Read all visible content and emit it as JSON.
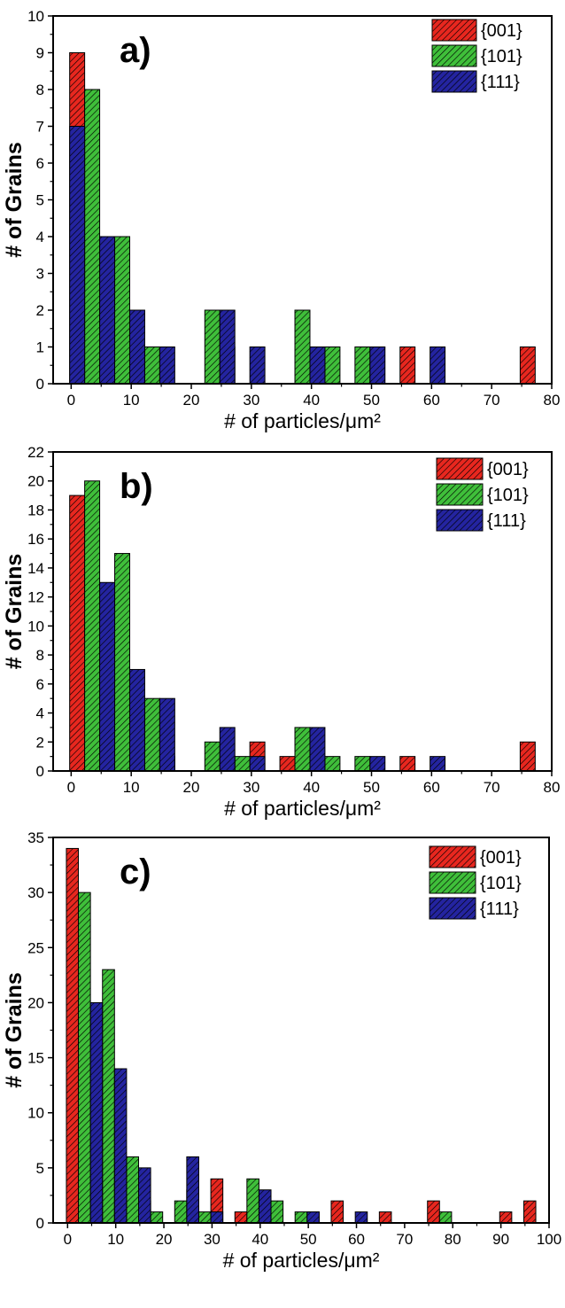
{
  "colors": {
    "001": "#e8271f",
    "101": "#3fbf3a",
    "111": "#2424a0",
    "axis": "#000000",
    "hatch": "#000000"
  },
  "chart_data": [
    {
      "type": "bar",
      "panel_label": "a)",
      "xlabel": "# of particles/μm²",
      "ylabel": "# of Grains",
      "xlim": [
        -3,
        80
      ],
      "ylim": [
        0,
        10
      ],
      "xticks": [
        0,
        10,
        20,
        30,
        40,
        50,
        60,
        70,
        80
      ],
      "yticks": [
        0,
        1,
        2,
        3,
        4,
        5,
        6,
        7,
        8,
        9,
        10
      ],
      "bar_width": 2.5,
      "legend_position": "top-right",
      "series": [
        {
          "name": "{001}",
          "color_key": "001",
          "x": [
            1,
            11,
            26,
            41,
            56,
            76
          ],
          "values": [
            9,
            1,
            1,
            1,
            1,
            1
          ]
        },
        {
          "name": "{101}",
          "color_key": "101",
          "x": [
            3.5,
            8.5,
            13.5,
            23.5,
            38.5,
            43.5,
            48.5
          ],
          "values": [
            8,
            4,
            1,
            2,
            2,
            1,
            1
          ]
        },
        {
          "name": "{111}",
          "color_key": "111",
          "x": [
            1,
            6,
            11,
            16,
            26,
            31,
            41,
            51,
            61
          ],
          "values": [
            7,
            4,
            2,
            1,
            2,
            1,
            1,
            1,
            1
          ]
        }
      ]
    },
    {
      "type": "bar",
      "panel_label": "b)",
      "xlabel": "# of particles/μm²",
      "ylabel": "# of Grains",
      "xlim": [
        -3,
        80
      ],
      "ylim": [
        0,
        22
      ],
      "xticks": [
        0,
        10,
        20,
        30,
        40,
        50,
        60,
        70,
        80
      ],
      "yticks": [
        0,
        2,
        4,
        6,
        8,
        10,
        12,
        14,
        16,
        18,
        20,
        22
      ],
      "bar_width": 2.5,
      "legend_position": "top-right",
      "series": [
        {
          "name": "{001}",
          "color_key": "001",
          "x": [
            1,
            6,
            11,
            16,
            26,
            31,
            36,
            41,
            56,
            76
          ],
          "values": [
            19,
            6,
            1,
            1,
            1,
            2,
            1,
            1,
            1,
            2
          ]
        },
        {
          "name": "{101}",
          "color_key": "101",
          "x": [
            3.5,
            8.5,
            13.5,
            23.5,
            28.5,
            38.5,
            43.5,
            48.5
          ],
          "values": [
            20,
            15,
            5,
            2,
            1,
            3,
            1,
            1
          ]
        },
        {
          "name": "{111}",
          "color_key": "111",
          "x": [
            6,
            11,
            16,
            26,
            31,
            41,
            51,
            61
          ],
          "values": [
            13,
            7,
            5,
            3,
            1,
            3,
            1,
            1
          ]
        }
      ]
    },
    {
      "type": "bar",
      "panel_label": "c)",
      "xlabel": "# of particles/μm²",
      "ylabel": "# of Grains",
      "xlim": [
        -3,
        100
      ],
      "ylim": [
        0,
        35
      ],
      "xticks": [
        0,
        10,
        20,
        30,
        40,
        50,
        60,
        70,
        80,
        90,
        100
      ],
      "yticks": [
        0,
        5,
        10,
        15,
        20,
        25,
        30,
        35
      ],
      "bar_width": 2.5,
      "legend_position": "top-right",
      "series": [
        {
          "name": "{001}",
          "color_key": "001",
          "x": [
            1,
            6,
            11,
            16,
            26,
            31,
            36,
            41,
            51,
            56,
            66,
            76,
            91,
            96
          ],
          "values": [
            34,
            19,
            5,
            2,
            3,
            4,
            1,
            1,
            1,
            2,
            1,
            2,
            1,
            2
          ]
        },
        {
          "name": "{101}",
          "color_key": "101",
          "x": [
            3.5,
            8.5,
            13.5,
            18.5,
            23.5,
            28.5,
            38.5,
            43.5,
            48.5,
            78.5
          ],
          "values": [
            30,
            23,
            6,
            1,
            2,
            1,
            4,
            2,
            1,
            1
          ]
        },
        {
          "name": "{111}",
          "color_key": "111",
          "x": [
            6,
            11,
            16,
            26,
            31,
            41,
            51,
            61
          ],
          "values": [
            20,
            14,
            5,
            6,
            1,
            3,
            1,
            1
          ]
        }
      ]
    }
  ]
}
